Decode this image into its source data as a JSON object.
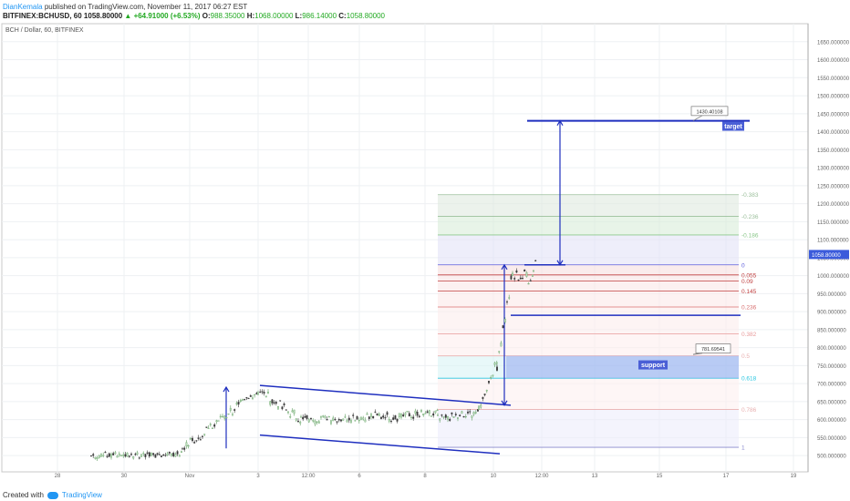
{
  "header": {
    "author": "DianKemala",
    "published": "published on TradingView.com, November 11, 2017 06:27 EST",
    "symbol": "BITFINEX:BCHUSD, 60",
    "last": "1058.80000",
    "change": "▲ +64.91000 (+6.53%)",
    "o_label": "O:",
    "o": "988.35000",
    "h_label": "H:",
    "h": "1068.00000",
    "l_label": "L:",
    "l": "986.14000",
    "c_label": "C:",
    "c": "1058.80000"
  },
  "legend": "BCH / Dollar, 60, BITFINEX",
  "footer": {
    "created": "Created with",
    "brand": "TradingView"
  },
  "chart_data": {
    "type": "candlestick",
    "y_ticks": [
      "1650.000000",
      "1600.000000",
      "1550.000000",
      "1500.000000",
      "1450.000000",
      "1400.000000",
      "1350.000000",
      "1300.000000",
      "1250.000000",
      "1200.000000",
      "1150.000000",
      "1100.000000",
      "1050.000000",
      "1000.000000",
      "950.000000",
      "900.000000",
      "850.000000",
      "800.000000",
      "750.000000",
      "700.000000",
      "650.000000",
      "600.000000",
      "550.000000",
      "500.000000"
    ],
    "y_tick_values": [
      1650,
      1600,
      1550,
      1500,
      1450,
      1400,
      1350,
      1300,
      1250,
      1200,
      1150,
      1100,
      1050,
      1000,
      950,
      900,
      850,
      800,
      750,
      700,
      650,
      600,
      550,
      500
    ],
    "ylim": [
      470,
      1690
    ],
    "x_ticks": [
      "28",
      "30",
      "Nov",
      "3",
      "12:00",
      "6",
      "8",
      "10",
      "12:00",
      "13",
      "15",
      "17",
      "19"
    ],
    "last_price_label": "1058.80000",
    "fib_levels": [
      {
        "label": "-0.383",
        "value": 1225,
        "color": "#9bbf9b"
      },
      {
        "label": "-0.236",
        "value": 1165,
        "color": "#9bbf9b"
      },
      {
        "label": "-0.186",
        "value": 1113,
        "color": "#8bc78b"
      },
      {
        "label": "0",
        "value": 1030,
        "color": "#5b5bdb"
      },
      {
        "label": "0.055",
        "value": 1002,
        "color": "#c04040"
      },
      {
        "label": "0.09",
        "value": 985,
        "color": "#c04040"
      },
      {
        "label": "0.145",
        "value": 957,
        "color": "#c04040"
      },
      {
        "label": "0.236",
        "value": 913,
        "color": "#d87070"
      },
      {
        "label": "0.382",
        "value": 838,
        "color": "#e89a9a"
      },
      {
        "label": "0.5",
        "value": 777,
        "color": "#e8b0b0"
      },
      {
        "label": "0.618",
        "value": 715,
        "color": "#29c6e0"
      },
      {
        "label": "0.786",
        "value": 628,
        "color": "#e8b0b0"
      },
      {
        "label": "1",
        "value": 523,
        "color": "#8888cc"
      }
    ],
    "annotations": [
      {
        "text": "target",
        "value": 1430
      },
      {
        "text": "support",
        "value": 745
      },
      {
        "text": "1430.40108",
        "value": 1430.40108
      },
      {
        "text": "781.69541",
        "value": 781.69541
      }
    ],
    "target_value": 1430.4,
    "support_range": [
      715,
      777
    ]
  }
}
